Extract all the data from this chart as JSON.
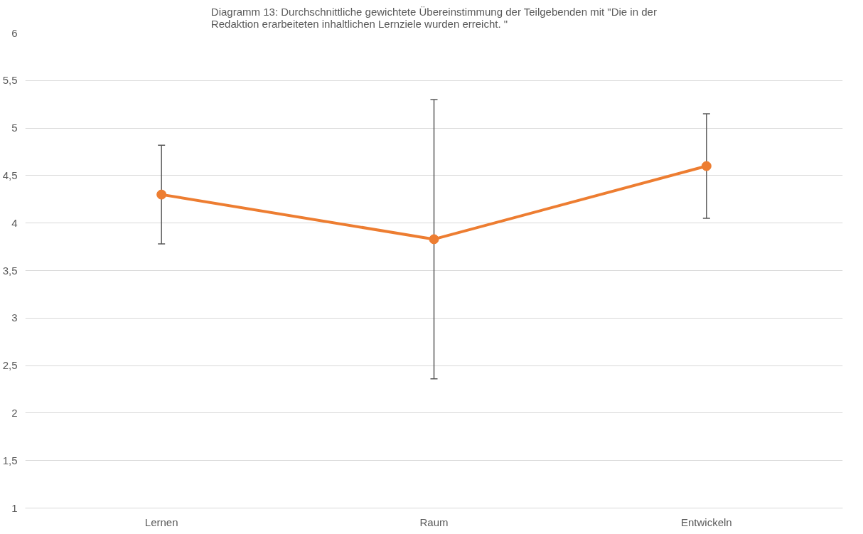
{
  "chart_data": {
    "type": "line",
    "title": "Diagramm 13: Durchschnittliche gewichtete Übereinstimmung der Teilgebenden mit \"Die in der Redaktion erarbeiteten inhaltlichen Lernziele wurden erreicht. \"",
    "categories": [
      "Lernen",
      "Raum",
      "Entwickeln"
    ],
    "series": [
      {
        "color": "#ed7d31",
        "values": [
          4.3,
          3.83,
          4.6
        ],
        "errors": [
          0.52,
          1.47,
          0.55
        ]
      }
    ],
    "ylim": [
      1,
      6
    ],
    "yticks": [
      1,
      {
        "value": 1.5,
        "label": "1,5"
      },
      2,
      {
        "value": 2.5,
        "label": "2,5"
      },
      3,
      {
        "value": 3.5,
        "label": "3,5"
      },
      4,
      {
        "value": 4.5,
        "label": "4,5"
      },
      5,
      {
        "value": 5.5,
        "label": "5,5"
      },
      6
    ],
    "grid": "y",
    "marker": "circle",
    "line_style": "solid"
  }
}
